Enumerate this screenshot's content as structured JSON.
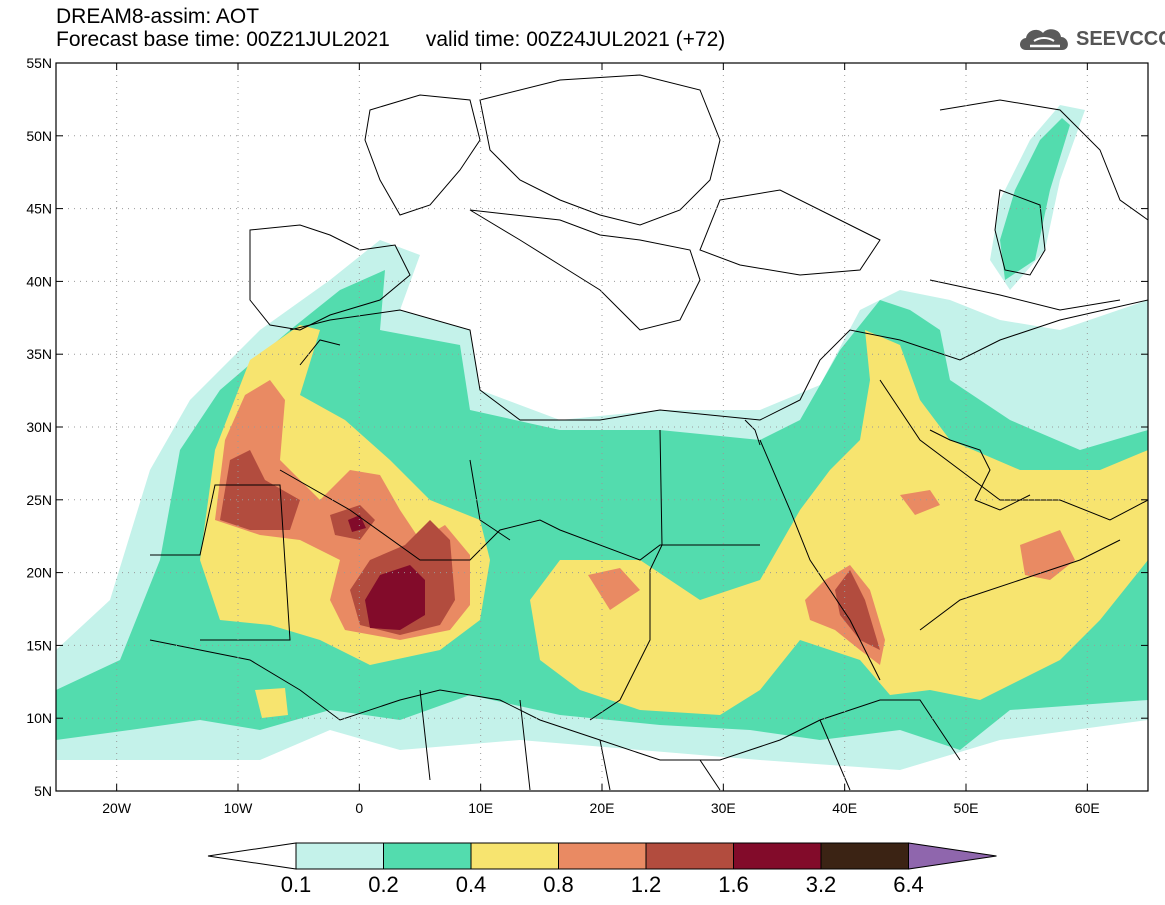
{
  "header": {
    "model_line": "DREAM8-assim: AOT",
    "base_time": "Forecast base time: 00Z21JUL2021",
    "valid_time": "valid time: 00Z24JUL2021 (+72)"
  },
  "logo": {
    "text": "SEEVCCC",
    "icon": "cloud-logo-icon",
    "color": "#555555"
  },
  "map": {
    "lon_range": [
      -25,
      65
    ],
    "lat_range": [
      5,
      55
    ],
    "lat_ticks": [
      {
        "value": 55,
        "label": "55N"
      },
      {
        "value": 50,
        "label": "50N"
      },
      {
        "value": 45,
        "label": "45N"
      },
      {
        "value": 40,
        "label": "40N"
      },
      {
        "value": 35,
        "label": "35N"
      },
      {
        "value": 30,
        "label": "30N"
      },
      {
        "value": 25,
        "label": "25N"
      },
      {
        "value": 20,
        "label": "20N"
      },
      {
        "value": 15,
        "label": "15N"
      },
      {
        "value": 10,
        "label": "10N"
      },
      {
        "value": 5,
        "label": "5N"
      }
    ],
    "lon_ticks": [
      {
        "value": -20,
        "label": "20W"
      },
      {
        "value": -10,
        "label": "10W"
      },
      {
        "value": 0,
        "label": "0"
      },
      {
        "value": 10,
        "label": "10E"
      },
      {
        "value": 20,
        "label": "20E"
      },
      {
        "value": 30,
        "label": "30E"
      },
      {
        "value": 40,
        "label": "40E"
      },
      {
        "value": 50,
        "label": "50E"
      },
      {
        "value": 60,
        "label": "60E"
      }
    ],
    "grid": true
  },
  "colorbar": {
    "labels": [
      "0.1",
      "0.2",
      "0.4",
      "0.8",
      "1.2",
      "1.6",
      "3.2",
      "6.4"
    ],
    "colors": [
      "#c4f2ea",
      "#53dcae",
      "#f7e46f",
      "#e98a63",
      "#b24c3e",
      "#820b2a",
      "#3b2314",
      "#8f66ad"
    ],
    "low_end_color": "#ffffff"
  }
}
